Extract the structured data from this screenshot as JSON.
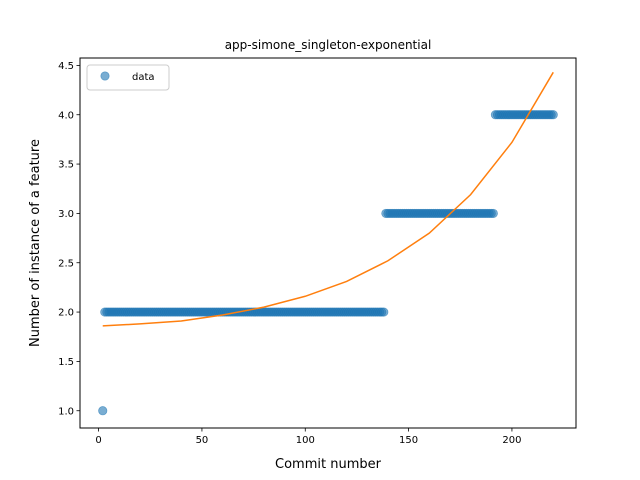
{
  "chart_data": {
    "type": "scatter",
    "title": "app-simone_singleton-exponential",
    "xlabel": "Commit number",
    "ylabel": "Number of instance of a feature",
    "xlim": [
      -9,
      231
    ],
    "ylim": [
      0.825,
      4.575
    ],
    "xticks": [
      0,
      50,
      100,
      150,
      200
    ],
    "yticks": [
      1.0,
      1.5,
      2.0,
      2.5,
      3.0,
      3.5,
      4.0,
      4.5
    ],
    "legend": {
      "placement": "top-left",
      "entries": [
        "data"
      ]
    },
    "grid": false,
    "series": [
      {
        "name": "data",
        "kind": "scatter",
        "color": "#1f77b4",
        "points": [
          [
            2,
            1.0
          ]
        ],
        "runs": [
          {
            "x_start": 3,
            "x_end": 138,
            "y": 2.0
          },
          {
            "x_start": 139,
            "x_end": 191,
            "y": 3.0
          },
          {
            "x_start": 192,
            "x_end": 220,
            "y": 4.0
          }
        ]
      },
      {
        "kind": "line",
        "color": "#ff7f0e",
        "fit": "exponential",
        "x": [
          2,
          20,
          40,
          60,
          80,
          100,
          120,
          140,
          160,
          180,
          200,
          220
        ],
        "y": [
          1.86,
          1.88,
          1.91,
          1.97,
          2.05,
          2.16,
          2.31,
          2.52,
          2.8,
          3.19,
          3.72,
          4.43
        ]
      }
    ]
  }
}
